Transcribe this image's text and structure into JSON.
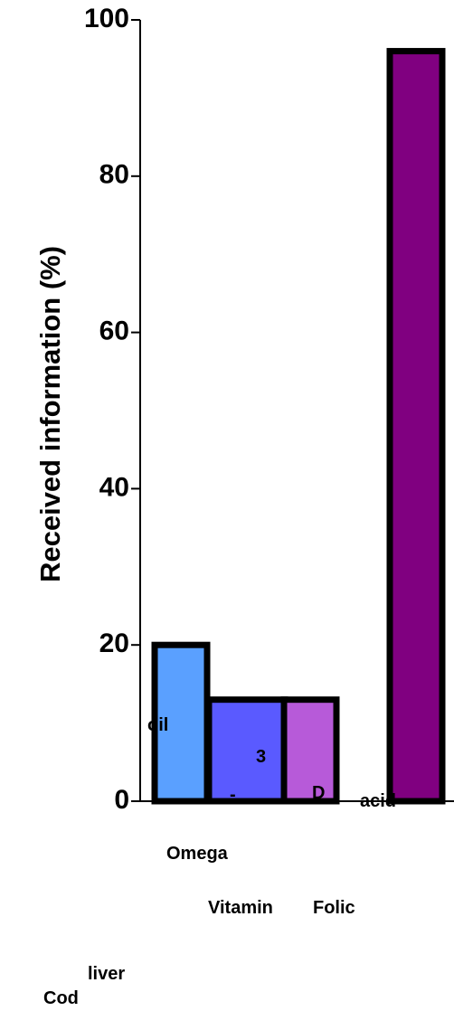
{
  "chart_data": {
    "type": "bar",
    "title": "",
    "xlabel": "",
    "ylabel": "Received information (%)",
    "ylim": [
      0,
      100
    ],
    "yticks": [
      0,
      20,
      40,
      60,
      80,
      100
    ],
    "categories": [
      "Cod liver oil",
      "Omega-3",
      "Vitamin D",
      "Folic acid"
    ],
    "values": [
      20,
      13,
      13,
      96
    ],
    "colors": [
      "#5aa0ff",
      "#5a5aff",
      "#b75ad9",
      "#800080"
    ],
    "edge_color": "#000000",
    "grid": false,
    "legend": "none",
    "category_label_words": [
      [
        "Cod",
        "liver",
        "oil"
      ],
      [
        "Omega",
        "-",
        "3"
      ],
      [
        "Vitamin",
        "D"
      ],
      [
        "Folic",
        "acid"
      ]
    ]
  }
}
